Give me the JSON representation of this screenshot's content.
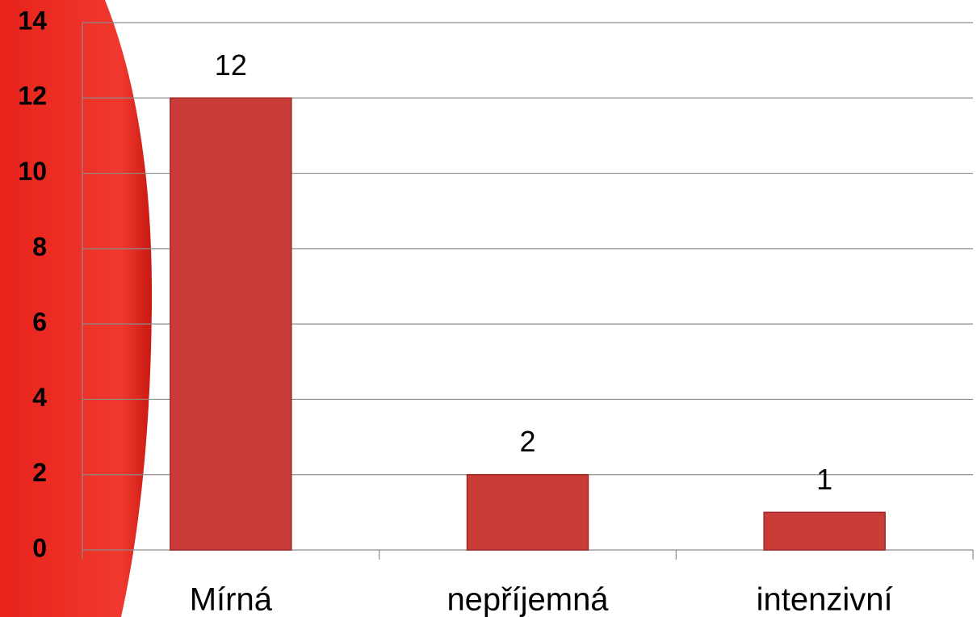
{
  "chart_data": {
    "type": "bar",
    "categories": [
      "Mírná",
      "nepříjemná",
      "intenzivní"
    ],
    "values": [
      12,
      2,
      1
    ],
    "color": "#c93c38",
    "ylim": [
      0,
      14
    ],
    "yticks": [
      0,
      2,
      4,
      6,
      8,
      10,
      12,
      14
    ],
    "grid": true
  }
}
